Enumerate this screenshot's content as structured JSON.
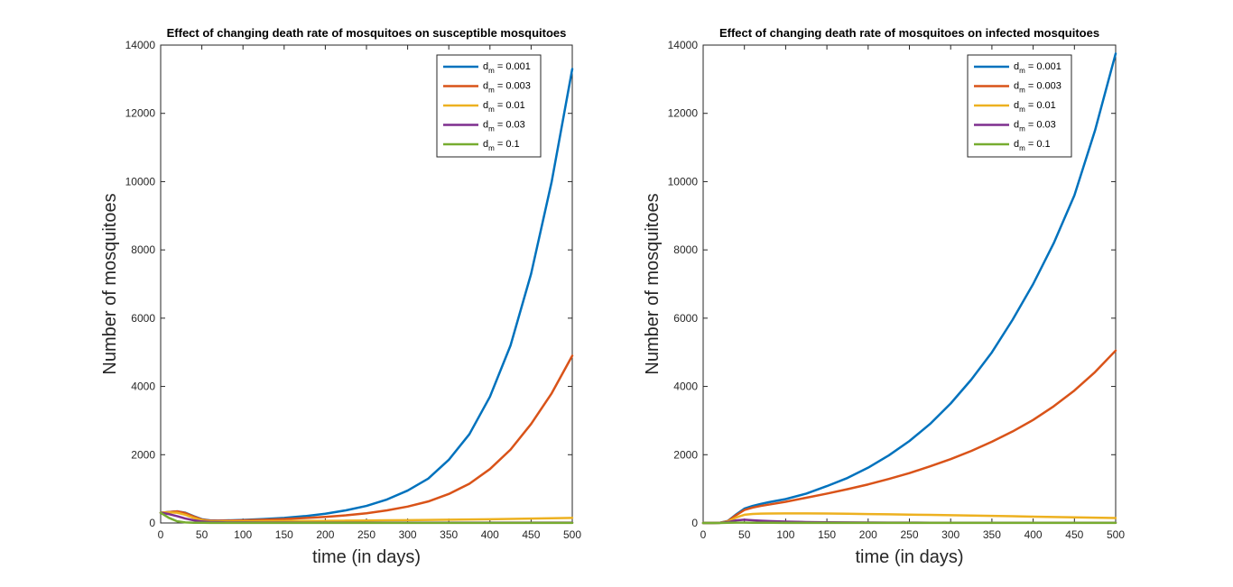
{
  "chart_data": [
    {
      "type": "line",
      "title": "Effect of changing death rate of mosquitoes on susceptible mosquitoes",
      "xlabel": "time (in days)",
      "ylabel": "Number of mosquitoes",
      "xlim": [
        0,
        500
      ],
      "ylim": [
        0,
        14000
      ],
      "xticks": [
        0,
        50,
        100,
        150,
        200,
        250,
        300,
        350,
        400,
        450,
        500
      ],
      "yticks": [
        0,
        2000,
        4000,
        6000,
        8000,
        10000,
        12000,
        14000
      ],
      "grid": false,
      "legend_position": "top-right",
      "x": [
        0,
        10,
        20,
        30,
        40,
        50,
        60,
        70,
        80,
        100,
        125,
        150,
        175,
        200,
        225,
        250,
        275,
        300,
        325,
        350,
        375,
        400,
        425,
        450,
        475,
        500
      ],
      "series": [
        {
          "name": "= 0.001",
          "label_main": "d",
          "label_sub": "m",
          "label_rest": " = 0.001",
          "color": "#0072BD",
          "values": [
            300,
            320,
            340,
            300,
            200,
            110,
            75,
            70,
            75,
            90,
            115,
            150,
            200,
            270,
            370,
            500,
            690,
            950,
            1300,
            1850,
            2600,
            3700,
            5200,
            7300,
            10000,
            13300
          ]
        },
        {
          "name": "= 0.003",
          "label_main": "d",
          "label_sub": "m",
          "label_rest": " = 0.003",
          "color": "#D95319",
          "values": [
            300,
            320,
            340,
            290,
            190,
            100,
            70,
            65,
            68,
            78,
            95,
            115,
            145,
            180,
            225,
            285,
            370,
            480,
            630,
            850,
            1150,
            1580,
            2150,
            2900,
            3800,
            4900
          ]
        },
        {
          "name": "= 0.01",
          "label_main": "d",
          "label_sub": "m",
          "label_rest": " = 0.01",
          "color": "#EDB120",
          "values": [
            300,
            310,
            300,
            240,
            150,
            80,
            50,
            45,
            45,
            48,
            52,
            56,
            60,
            64,
            68,
            72,
            78,
            84,
            90,
            96,
            102,
            110,
            118,
            128,
            138,
            150
          ]
        },
        {
          "name": "= 0.03",
          "label_main": "d",
          "label_sub": "m",
          "label_rest": " = 0.03",
          "color": "#7E2F8E",
          "values": [
            300,
            260,
            200,
            130,
            80,
            45,
            28,
            22,
            18,
            15,
            13,
            12,
            11,
            10,
            10,
            10,
            10,
            10,
            10,
            10,
            10,
            10,
            10,
            10,
            10,
            10
          ]
        },
        {
          "name": "= 0.1",
          "label_main": "d",
          "label_sub": "m",
          "label_rest": " = 0.1",
          "color": "#77AC30",
          "values": [
            300,
            150,
            50,
            18,
            8,
            5,
            4,
            4,
            4,
            4,
            4,
            4,
            4,
            4,
            4,
            4,
            4,
            4,
            4,
            4,
            4,
            4,
            4,
            4,
            4,
            4
          ]
        }
      ]
    },
    {
      "type": "line",
      "title": "Effect of changing death rate of mosquitoes on infected mosquitoes",
      "xlabel": "time (in days)",
      "ylabel": "Number of mosquitoes",
      "xlim": [
        0,
        500
      ],
      "ylim": [
        0,
        14000
      ],
      "xticks": [
        0,
        50,
        100,
        150,
        200,
        250,
        300,
        350,
        400,
        450,
        500
      ],
      "yticks": [
        0,
        2000,
        4000,
        6000,
        8000,
        10000,
        12000,
        14000
      ],
      "grid": false,
      "legend_position": "top-right",
      "x": [
        0,
        10,
        20,
        30,
        40,
        50,
        60,
        70,
        80,
        100,
        125,
        150,
        175,
        200,
        225,
        250,
        275,
        300,
        325,
        350,
        375,
        400,
        425,
        450,
        475,
        500
      ],
      "series": [
        {
          "name": "= 0.001",
          "label_main": "d",
          "label_sub": "m",
          "label_rest": " = 0.001",
          "color": "#0072BD",
          "values": [
            0,
            0,
            5,
            60,
            250,
            420,
            500,
            560,
            610,
            700,
            860,
            1080,
            1320,
            1620,
            1980,
            2400,
            2900,
            3500,
            4200,
            5000,
            5950,
            7000,
            8200,
            9600,
            11500,
            13750
          ]
        },
        {
          "name": "= 0.003",
          "label_main": "d",
          "label_sub": "m",
          "label_rest": " = 0.003",
          "color": "#D95319",
          "values": [
            0,
            0,
            5,
            55,
            230,
            380,
            450,
            500,
            540,
            620,
            740,
            860,
            990,
            1130,
            1290,
            1460,
            1660,
            1870,
            2110,
            2380,
            2680,
            3020,
            3420,
            3880,
            4420,
            5050
          ]
        },
        {
          "name": "= 0.01",
          "label_main": "d",
          "label_sub": "m",
          "label_rest": " = 0.01",
          "color": "#EDB120",
          "values": [
            0,
            0,
            4,
            40,
            160,
            240,
            265,
            275,
            278,
            280,
            280,
            276,
            270,
            262,
            255,
            246,
            237,
            228,
            218,
            207,
            197,
            186,
            176,
            166,
            156,
            146
          ]
        },
        {
          "name": "= 0.03",
          "label_main": "d",
          "label_sub": "m",
          "label_rest": " = 0.03",
          "color": "#7E2F8E",
          "values": [
            0,
            0,
            3,
            25,
            75,
            95,
            80,
            65,
            55,
            40,
            28,
            20,
            15,
            12,
            10,
            9,
            8,
            8,
            7,
            7,
            7,
            6,
            6,
            6,
            6,
            6
          ]
        },
        {
          "name": "= 0.1",
          "label_main": "d",
          "label_sub": "m",
          "label_rest": " = 0.1",
          "color": "#77AC30",
          "values": [
            0,
            0,
            1,
            5,
            10,
            10,
            8,
            6,
            5,
            4,
            3,
            3,
            3,
            3,
            3,
            3,
            3,
            3,
            3,
            3,
            3,
            3,
            3,
            3,
            3,
            3
          ]
        }
      ]
    }
  ]
}
